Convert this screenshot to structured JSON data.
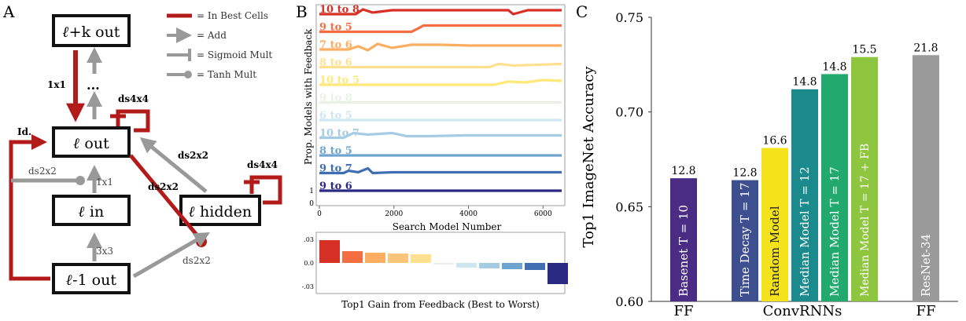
{
  "panel_a": {
    "letter": "A",
    "boxes": {
      "top_out_ell": "ℓ",
      "top_out_text": "+k out",
      "out_ell": "ℓ",
      "out_text": " out",
      "in_ell": "ℓ",
      "in_text": " in",
      "hidden_ell": "ℓ",
      "hidden_text": " hidden",
      "prev_out_ell": "ℓ",
      "prev_out_text": "-1 out"
    },
    "edge_labels": {
      "conv1x1_best": "1x1",
      "ellipsis": "...",
      "ds4x4_out": "ds4x4",
      "identity": "Id.",
      "ds2x2_left": "ds2x2",
      "conv1x1": "1x1",
      "ds2x2_red": "ds2x2",
      "ds2x2_hidden": "ds2x2",
      "ds4x4_hidden": "ds4x4",
      "conv3x3": "3x3",
      "ds2x2_bottom": "ds2x2"
    },
    "legend": [
      {
        "label": "= In Best Cells",
        "symbol": "red-bar"
      },
      {
        "label": "= Add",
        "symbol": "gray-arrow"
      },
      {
        "label": "= Sigmoid Mult",
        "symbol": "gray-tee"
      },
      {
        "label": "= Tanh Mult",
        "symbol": "gray-dot"
      }
    ],
    "colors": {
      "best": "#b31b1b",
      "other": "#999999"
    }
  },
  "panel_b": {
    "letter": "B",
    "line_chart": {
      "ylabel": "Prop. Models with Feedback",
      "xlabel": "Search Model Number",
      "xticks": [
        "0",
        "2000",
        "4000",
        "6000"
      ],
      "ytick": "1",
      "ytick_lower": "0",
      "xlim": [
        0,
        6500
      ],
      "series": [
        {
          "name": "10 to 8",
          "color": "#d73027"
        },
        {
          "name": "9 to 5",
          "color": "#f46d43"
        },
        {
          "name": "7 to 6",
          "color": "#fdae61"
        },
        {
          "name": "8 to 6",
          "color": "#fee090"
        },
        {
          "name": "10 to 5",
          "color": "#ffe87a"
        },
        {
          "name": "9 to 8",
          "color": "#e8f2e4"
        },
        {
          "name": "6 to 5",
          "color": "#cfe6f2"
        },
        {
          "name": "10 to 7",
          "color": "#a6cce3"
        },
        {
          "name": "8 to 5",
          "color": "#6ea4d0"
        },
        {
          "name": "9 to 7",
          "color": "#3f6eb3"
        },
        {
          "name": "9 to 6",
          "color": "#2b2a83"
        }
      ]
    },
    "bar_chart": {
      "xlabel": "Top1 Gain from Feedback (Best to Worst)",
      "yticks": [
        ".03",
        "0.0",
        "-.03"
      ],
      "ylim": [
        -0.035,
        0.035
      ],
      "values": [
        0.029,
        0.015,
        0.013,
        0.012,
        0.011,
        -0.002,
        -0.006,
        -0.007,
        -0.008,
        -0.009,
        -0.027
      ],
      "colors": [
        "#d73027",
        "#f46d43",
        "#fdae61",
        "#fdc57a",
        "#fee090",
        "#e8f2e4",
        "#cfe6f2",
        "#a6cce3",
        "#6ea4d0",
        "#3f6eb3",
        "#2b2a83"
      ]
    }
  },
  "panel_c": {
    "letter": "C",
    "chart_data": {
      "type": "bar",
      "ylabel": "Top1 ImageNet Accuracy",
      "ylim": [
        0.6,
        0.75
      ],
      "yticks": [
        "0.60",
        "0.65",
        "0.70",
        "0.75"
      ],
      "ytick_values": [
        0.6,
        0.65,
        0.7,
        0.75
      ],
      "groups": [
        "FF",
        "ConvRNNs",
        "FF"
      ],
      "bars": [
        {
          "label": "Basenet  T = 10",
          "value": 0.665,
          "top_label": "12.8",
          "color": "#4b2c84",
          "group": 0
        },
        {
          "label": "Time Decay  T = 17",
          "value": 0.664,
          "top_label": "12.8",
          "color": "#3d4f8e",
          "group": 1
        },
        {
          "label": "Random Model",
          "value": 0.681,
          "top_label": "16.6",
          "color": "#f4e21b",
          "group": 1
        },
        {
          "label": "Median Model  T = 12",
          "value": 0.712,
          "top_label": "14.8",
          "color": "#1a8a8c",
          "group": 1
        },
        {
          "label": "Median Model  T = 17",
          "value": 0.72,
          "top_label": "14.8",
          "color": "#22a96e",
          "group": 1
        },
        {
          "label": "Median Model  T = 17 + FB",
          "value": 0.729,
          "top_label": "15.5",
          "color": "#8ec63f",
          "group": 1
        },
        {
          "label": "ResNet-34",
          "value": 0.73,
          "top_label": "21.8",
          "color": "#9a9a9a",
          "group": 2
        }
      ]
    }
  }
}
